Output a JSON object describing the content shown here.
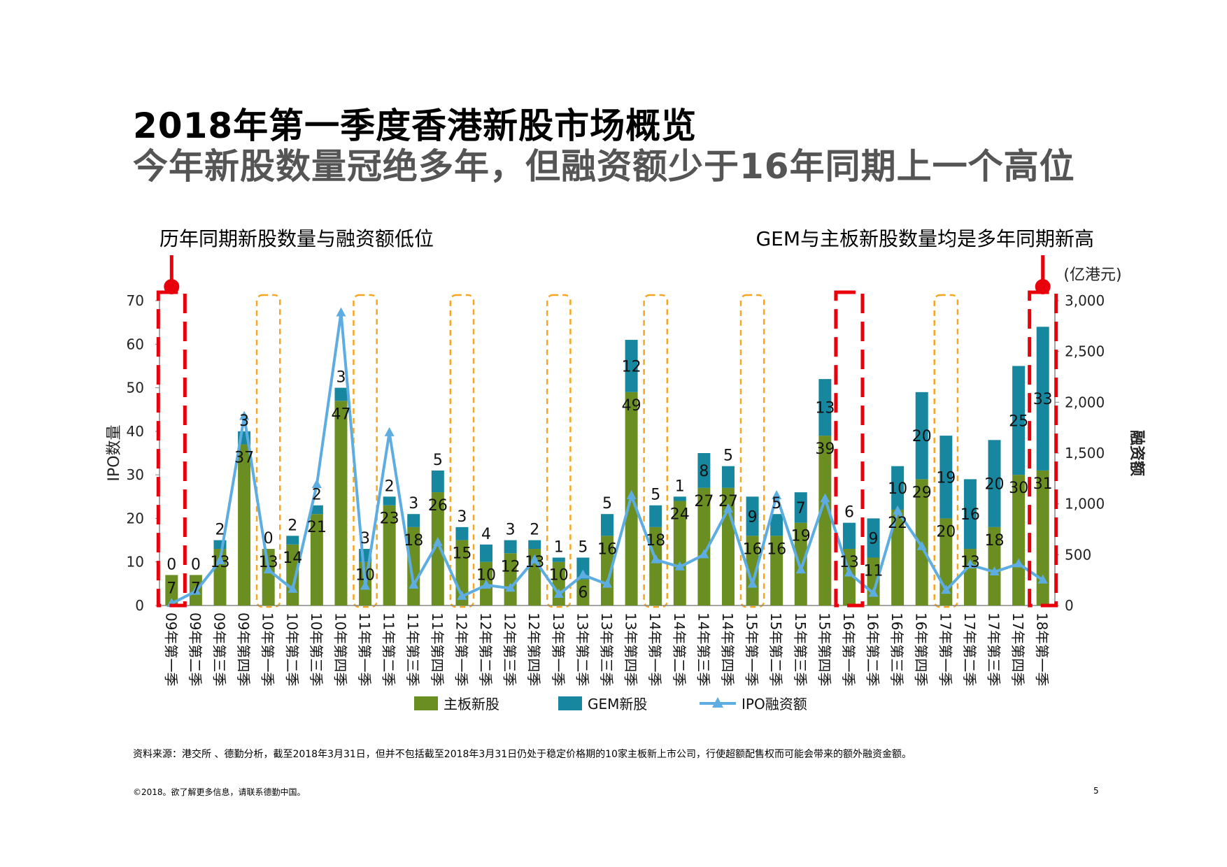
{
  "header": {
    "title": "2018年第一季度香港新股市场概览",
    "subtitle": "今年新股数量冠绝多年，但融资额少于16年同期上一个高位"
  },
  "annotations": {
    "left": "历年同期新股数量与融资额低位",
    "right": "GEM与主板新股数量均是多年同期新高"
  },
  "footer": {
    "source": "资料来源：港交所 、德勤分析，截至2018年3月31日，但并不包括截至2018年3月31日仍处于稳定价格期的10家主板新上市公司，行使超额配售权而可能会带来的额外融资金额。",
    "copyright": "©2018。欲了解更多信息，请联系德勤中国。",
    "page": "5"
  },
  "chart_data": {
    "type": "bar",
    "stacked": true,
    "categories": [
      "09年第一季",
      "09年第二季",
      "09年第三季",
      "09年第四季",
      "10年第一季",
      "10年第二季",
      "10年第三季",
      "10年第四季",
      "11年第一季",
      "11年第二季",
      "11年第三季",
      "11年第四季",
      "12年第一季",
      "12年第二季",
      "12年第三季",
      "12年第四季",
      "13年第一季",
      "13年第二季",
      "13年第三季",
      "13年第四季",
      "14年第一季",
      "14年第二季",
      "14年第三季",
      "14年第四季",
      "15年第一季",
      "15年第二季",
      "15年第三季",
      "15年第四季",
      "16年第一季",
      "16年第二季",
      "16年第三季",
      "16年第四季",
      "17年第一季",
      "17年第二季",
      "17年第三季",
      "17年第四季",
      "18年第一季"
    ],
    "series": [
      {
        "name": "主板新股",
        "type": "bar",
        "axis": "left",
        "color": "#6B8E23",
        "values": [
          7,
          7,
          13,
          37,
          13,
          14,
          21,
          47,
          10,
          23,
          18,
          26,
          15,
          10,
          12,
          13,
          10,
          6,
          16,
          49,
          18,
          24,
          27,
          27,
          16,
          16,
          19,
          39,
          13,
          11,
          22,
          29,
          20,
          13,
          18,
          30,
          31
        ]
      },
      {
        "name": "GEM新股",
        "type": "bar",
        "axis": "left",
        "color": "#17879F",
        "values": [
          0,
          0,
          2,
          3,
          0,
          2,
          2,
          3,
          3,
          2,
          3,
          5,
          3,
          4,
          3,
          2,
          1,
          5,
          5,
          12,
          5,
          1,
          8,
          5,
          9,
          5,
          7,
          13,
          6,
          9,
          10,
          20,
          19,
          16,
          20,
          25,
          33
        ]
      },
      {
        "name": "IPO融资额",
        "type": "line",
        "axis": "right",
        "color": "#5DADE2",
        "values": [
          20,
          140,
          440,
          1860,
          350,
          160,
          1190,
          2880,
          190,
          1700,
          200,
          620,
          90,
          200,
          170,
          450,
          110,
          300,
          210,
          1080,
          450,
          380,
          500,
          950,
          210,
          1080,
          350,
          1050,
          320,
          120,
          930,
          580,
          150,
          400,
          330,
          410,
          250
        ]
      }
    ],
    "left_axis": {
      "label": "IPO数量",
      "ylim": [
        0,
        70
      ],
      "ticks": [
        "0",
        "10",
        "20",
        "30",
        "40",
        "50",
        "60",
        "70"
      ]
    },
    "right_axis": {
      "label": "融资额",
      "unit": "(亿港元)",
      "ylim": [
        0,
        3000
      ],
      "ticks": [
        "0",
        "500",
        "1,000",
        "1,500",
        "2,000",
        "2,500",
        "3,000"
      ]
    },
    "highlight_orange": [
      4,
      8,
      12,
      16,
      20,
      24,
      32
    ],
    "highlight_red": [
      0,
      28,
      36
    ],
    "legend": {
      "position": "bottom",
      "items": [
        "主板新股",
        "GEM新股",
        "IPO融资额"
      ]
    }
  }
}
